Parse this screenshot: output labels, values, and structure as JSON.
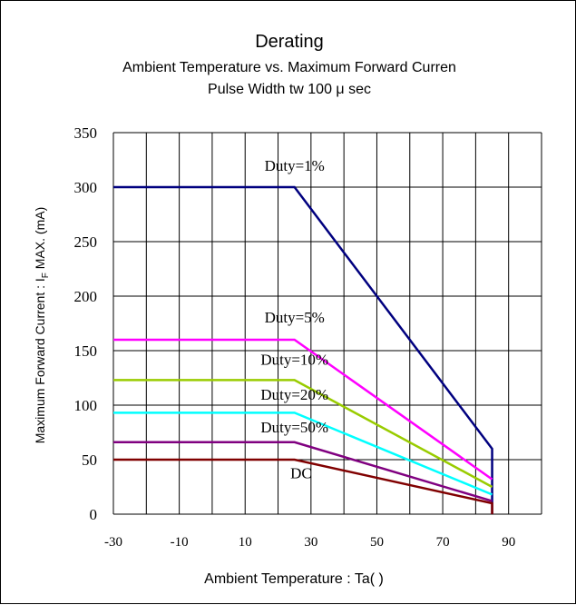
{
  "chart_data": {
    "type": "line",
    "title": "Derating",
    "subtitle_1": "Ambient Temperature vs. Maximum Forward Curren",
    "subtitle_2": "Pulse Width tw    100 μ sec",
    "xlabel": "Ambient Temperature : Ta(    )",
    "ylabel_main": "Maximum Forward Current : I",
    "ylabel_sub": "F",
    "ylabel_tail": " MAX. (mA)",
    "xlim": [
      -30,
      100
    ],
    "ylim": [
      0,
      350
    ],
    "x_ticks": [
      -30,
      -10,
      10,
      30,
      50,
      70,
      90
    ],
    "y_ticks": [
      0,
      50,
      100,
      150,
      200,
      250,
      300,
      350
    ],
    "grid": true,
    "series": [
      {
        "name": "Duty=1%",
        "color": "#00007f",
        "label_at": [
          25,
          315
        ],
        "points": [
          [
            -30,
            300
          ],
          [
            25,
            300
          ],
          [
            85,
            60
          ],
          [
            85,
            0
          ]
        ]
      },
      {
        "name": "Duty=5%",
        "color": "#ff00ff",
        "label_at": [
          25,
          176
        ],
        "points": [
          [
            -30,
            160
          ],
          [
            25,
            160
          ],
          [
            85,
            32
          ]
        ]
      },
      {
        "name": "Duty=10%",
        "color": "#99cc00",
        "label_at": [
          25,
          137
        ],
        "points": [
          [
            -30,
            123
          ],
          [
            25,
            123
          ],
          [
            85,
            25
          ]
        ]
      },
      {
        "name": "Duty=20%",
        "color": "#00ffff",
        "label_at": [
          25,
          105
        ],
        "points": [
          [
            -30,
            93
          ],
          [
            25,
            93
          ],
          [
            85,
            18
          ]
        ]
      },
      {
        "name": "Duty=50%",
        "color": "#800080",
        "label_at": [
          25,
          75
        ],
        "points": [
          [
            -30,
            66
          ],
          [
            25,
            66
          ],
          [
            85,
            12
          ]
        ]
      },
      {
        "name": "DC",
        "color": "#800000",
        "label_at": [
          27,
          33
        ],
        "points": [
          [
            -30,
            50
          ],
          [
            25,
            50
          ],
          [
            85,
            10
          ],
          [
            85,
            0
          ]
        ]
      }
    ]
  }
}
